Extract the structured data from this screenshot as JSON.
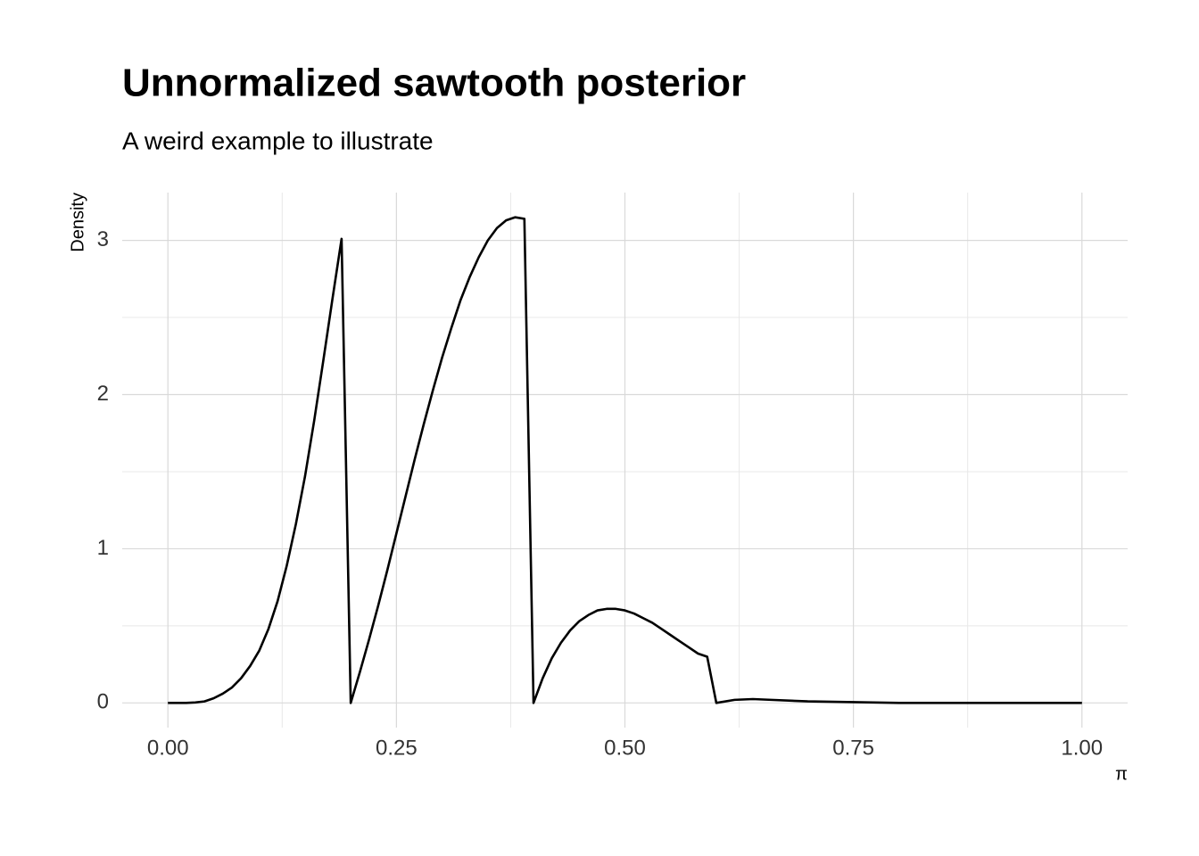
{
  "chart_data": {
    "type": "line",
    "title": "Unnormalized sawtooth posterior",
    "subtitle": "A weird example to illustrate",
    "x_label": "π",
    "y_label": "Density",
    "x": [
      0,
      0.01,
      0.02,
      0.03,
      0.04,
      0.05,
      0.06,
      0.07,
      0.08,
      0.09,
      0.1,
      0.11,
      0.12,
      0.13,
      0.14,
      0.15,
      0.16,
      0.17,
      0.18,
      0.19,
      0.2,
      0.21,
      0.22,
      0.23,
      0.24,
      0.25,
      0.26,
      0.27,
      0.28,
      0.29,
      0.3,
      0.31,
      0.32,
      0.33,
      0.34,
      0.35,
      0.36,
      0.37,
      0.38,
      0.39,
      0.4,
      0.41,
      0.42,
      0.43,
      0.44,
      0.45,
      0.46,
      0.47,
      0.48,
      0.49,
      0.5,
      0.51,
      0.52,
      0.53,
      0.54,
      0.55,
      0.56,
      0.57,
      0.58,
      0.59,
      0.6,
      0.62,
      0.64,
      0.66,
      0.7,
      0.75,
      0.8,
      0.9,
      1.0
    ],
    "series": [
      {
        "name": "Density",
        "color": "#000000",
        "values": [
          0,
          0,
          0,
          0.003,
          0.01,
          0.03,
          0.06,
          0.1,
          0.16,
          0.24,
          0.34,
          0.48,
          0.66,
          0.89,
          1.16,
          1.47,
          1.83,
          2.22,
          2.62,
          3.01,
          0,
          0.2,
          0.41,
          0.63,
          0.86,
          1.1,
          1.34,
          1.58,
          1.81,
          2.03,
          2.24,
          2.43,
          2.61,
          2.76,
          2.89,
          3.0,
          3.08,
          3.13,
          3.15,
          3.14,
          0,
          0.16,
          0.29,
          0.39,
          0.47,
          0.53,
          0.57,
          0.6,
          0.61,
          0.61,
          0.6,
          0.58,
          0.55,
          0.52,
          0.48,
          0.44,
          0.4,
          0.36,
          0.32,
          0.3,
          0,
          0.02,
          0.025,
          0.02,
          0.01,
          0.005,
          0,
          0,
          0
        ]
      }
    ],
    "xlim": [
      -0.05,
      1.05
    ],
    "ylim": [
      -0.16,
      3.31
    ],
    "xticks": [
      {
        "value": 0,
        "label": "0.00"
      },
      {
        "value": 0.25,
        "label": "0.25"
      },
      {
        "value": 0.5,
        "label": "0.50"
      },
      {
        "value": 0.75,
        "label": "0.75"
      },
      {
        "value": 1,
        "label": "1.00"
      }
    ],
    "yticks": [
      0,
      1,
      2,
      3
    ],
    "grid": true
  }
}
